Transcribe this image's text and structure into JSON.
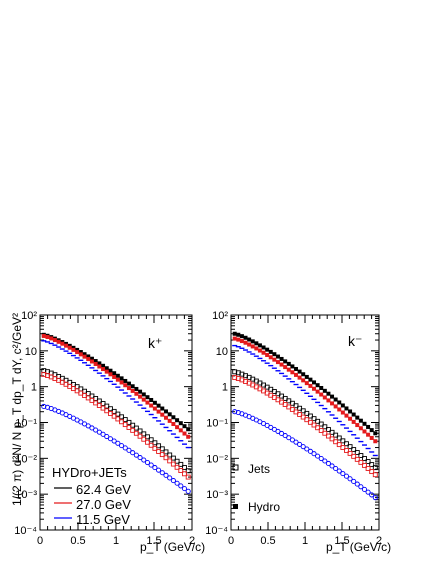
{
  "figure": {
    "ylabel": "1/(2 π) d²N/ N p_T dp_T dY, c²/GeV²",
    "xlabel": "p_T (GeV/c)"
  },
  "chart_data": [
    {
      "type": "scatter",
      "panel_label": "k⁺",
      "xlabel": "p_T (GeV/c)",
      "ylabel": "1/(2 π) d²N/ N p_T dp_T dY, c²/GeV²",
      "xlim": [
        0,
        2
      ],
      "ylim": [
        0.0001,
        100
      ],
      "yscale": "log",
      "x_ticks": [
        "0",
        "0.5",
        "1",
        "1.5",
        "2"
      ],
      "y_ticks": [
        "10⁻⁴",
        "10⁻³",
        "10⁻²",
        "10⁻¹",
        "1",
        "10",
        "10²"
      ],
      "legend": {
        "title": "HYDro+JETs",
        "entries": [
          "62.4 GeV",
          "27.0 GeV",
          "11.5 GeV"
        ],
        "placement": "bottom-left"
      },
      "series": [
        {
          "name": "62.4 GeV",
          "group": "Hydro",
          "color": "#000000",
          "marker": "filled-square",
          "x": [
            0.05,
            1.95
          ],
          "y_start": 28,
          "y_end": 0.065
        },
        {
          "name": "27.0 GeV",
          "group": "Hydro",
          "color": "#e41a1c",
          "marker": "filled-square",
          "x": [
            0.05,
            1.95
          ],
          "y_start": 26,
          "y_end": 0.04
        },
        {
          "name": "11.5 GeV",
          "group": "Hydro",
          "color": "#0000ff",
          "marker": "dash",
          "x": [
            0.05,
            1.95
          ],
          "y_start": 19,
          "y_end": 0.02
        },
        {
          "name": "62.4 GeV",
          "group": "Jets",
          "color": "#000000",
          "marker": "open-square",
          "x": [
            0.05,
            1.95
          ],
          "y_start": 2.8,
          "y_end": 0.0045
        },
        {
          "name": "27.0 GeV",
          "group": "Jets",
          "color": "#e41a1c",
          "marker": "open-square",
          "x": [
            0.05,
            1.95
          ],
          "y_start": 2.2,
          "y_end": 0.003
        },
        {
          "name": "11.5 GeV",
          "group": "Jets",
          "color": "#0000ff",
          "marker": "open-circle",
          "x": [
            0.05,
            1.95
          ],
          "y_start": 0.28,
          "y_end": 0.0012
        }
      ]
    },
    {
      "type": "scatter",
      "panel_label": "k⁻",
      "xlabel": "p_T (GeV/c)",
      "xlim": [
        0,
        2
      ],
      "ylim": [
        0.0001,
        100
      ],
      "yscale": "log",
      "x_ticks": [
        "0",
        "0.5",
        "1",
        "1.5",
        "2"
      ],
      "y_ticks": [
        "10⁻⁴",
        "10⁻³",
        "10⁻²",
        "10⁻¹",
        "1",
        "10",
        "10²"
      ],
      "legend": {
        "entries": [
          "Jets",
          "Hydro"
        ],
        "placement": "bottom-left"
      },
      "series": [
        {
          "name": "62.4 GeV",
          "group": "Hydro",
          "color": "#000000",
          "marker": "filled-square",
          "x": [
            0.05,
            1.95
          ],
          "y_start": 30,
          "y_end": 0.05
        },
        {
          "name": "27.0 GeV",
          "group": "Hydro",
          "color": "#e41a1c",
          "marker": "filled-square",
          "x": [
            0.05,
            1.95
          ],
          "y_start": 22,
          "y_end": 0.03
        },
        {
          "name": "11.5 GeV",
          "group": "Hydro",
          "color": "#0000ff",
          "marker": "dash",
          "x": [
            0.05,
            1.95
          ],
          "y_start": 14,
          "y_end": 0.012
        },
        {
          "name": "62.4 GeV",
          "group": "Jets",
          "color": "#000000",
          "marker": "open-square",
          "x": [
            0.05,
            1.95
          ],
          "y_start": 2.6,
          "y_end": 0.0055
        },
        {
          "name": "27.0 GeV",
          "group": "Jets",
          "color": "#e41a1c",
          "marker": "open-square",
          "x": [
            0.05,
            1.95
          ],
          "y_start": 1.8,
          "y_end": 0.0035
        },
        {
          "name": "11.5 GeV",
          "group": "Jets",
          "color": "#0000ff",
          "marker": "open-circle",
          "x": [
            0.05,
            1.95
          ],
          "y_start": 0.2,
          "y_end": 0.0008
        }
      ]
    }
  ]
}
